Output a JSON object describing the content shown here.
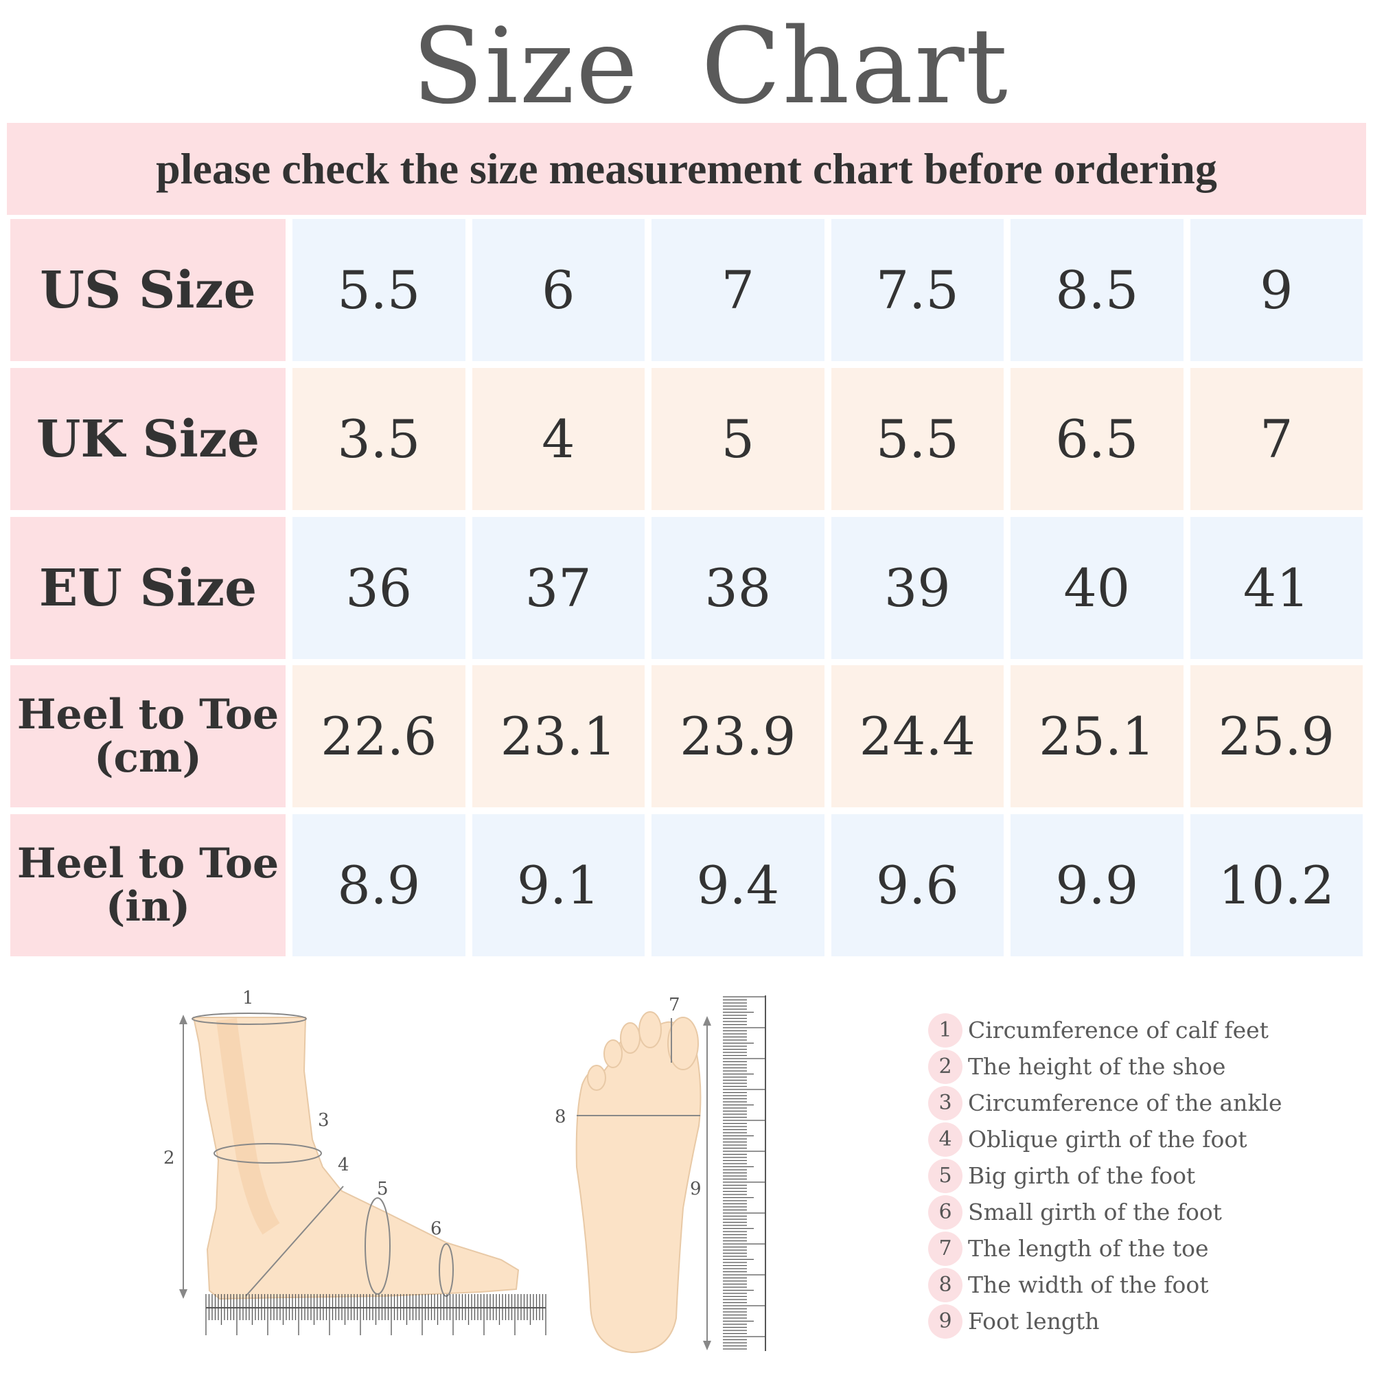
{
  "title": "Size Chart",
  "banner": "please check the size measurement chart before ordering",
  "colors": {
    "label_bg": "#fde0e3",
    "blue_row": "#eef5fd",
    "peach_row": "#fdf1e8",
    "foot": "#fbe2c6"
  },
  "table": [
    {
      "label": [
        "US Size"
      ],
      "values": [
        "5.5",
        "6",
        "7",
        "7.5",
        "8.5",
        "9"
      ]
    },
    {
      "label": [
        "UK Size"
      ],
      "values": [
        "3.5",
        "4",
        "5",
        "5.5",
        "6.5",
        "7"
      ]
    },
    {
      "label": [
        "EU Size"
      ],
      "values": [
        "36",
        "37",
        "38",
        "39",
        "40",
        "41"
      ]
    },
    {
      "label": [
        "Heel to Toe",
        "(cm)"
      ],
      "values": [
        "22.6",
        "23.1",
        "23.9",
        "24.4",
        "25.1",
        "25.9"
      ]
    },
    {
      "label": [
        "Heel to Toe",
        "(in)"
      ],
      "values": [
        "8.9",
        "9.1",
        "9.4",
        "9.6",
        "9.9",
        "10.2"
      ]
    }
  ],
  "diagram_labels": [
    "1",
    "2",
    "3",
    "4",
    "5",
    "6",
    "7",
    "8",
    "9"
  ],
  "legend": [
    {
      "num": "1",
      "text": "Circumference of calf feet"
    },
    {
      "num": "2",
      "text": "The height of the shoe"
    },
    {
      "num": "3",
      "text": "Circumference of the ankle"
    },
    {
      "num": "4",
      "text": "Oblique girth of the foot"
    },
    {
      "num": "5",
      "text": "Big girth of the foot"
    },
    {
      "num": "6",
      "text": "Small girth of the foot"
    },
    {
      "num": "7",
      "text": "The length of the toe"
    },
    {
      "num": "8",
      "text": "The width of the foot"
    },
    {
      "num": "9",
      "text": "Foot length"
    }
  ]
}
